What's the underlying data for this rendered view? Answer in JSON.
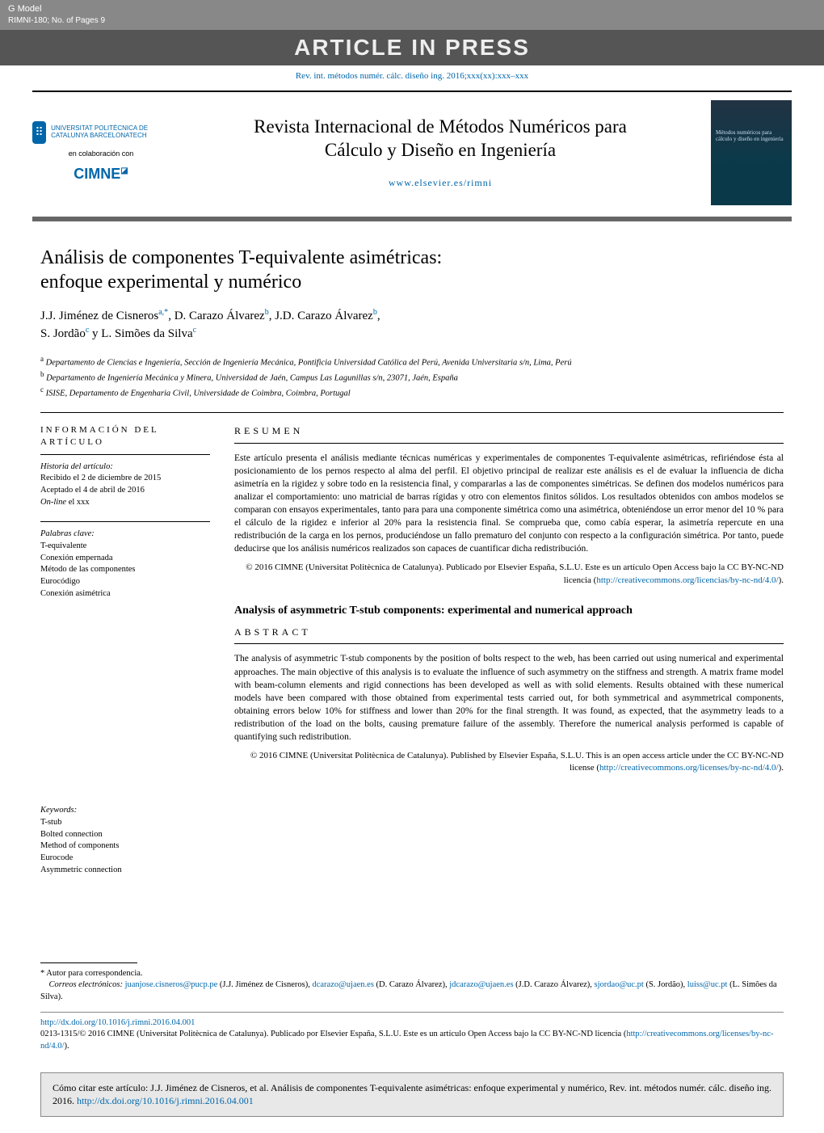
{
  "gmodel": {
    "line1": "G Model",
    "line2": "RIMNI-180;   No. of Pages 9"
  },
  "aip": "ARTICLE IN PRESS",
  "top_citation": "Rev. int. métodos numér. cálc. diseño ing. 2016;xxx(xx):xxx–xxx",
  "header": {
    "upc_text": "UNIVERSITAT POLITÈCNICA DE CATALUNYA BARCELONATECH",
    "colab": "en colaboración con",
    "cimne": "CIMNE",
    "journal_title_1": "Revista Internacional de Métodos Numéricos para",
    "journal_title_2": "Cálculo y Diseño en Ingeniería",
    "journal_url": "www.elsevier.es/rimni",
    "cover_text": "Métodos numéricos para cálculo y diseño en ingeniería"
  },
  "article": {
    "title_1": "Análisis de componentes T-equivalente asimétricas:",
    "title_2": "enfoque experimental y numérico",
    "authors_html": "J.J. Jiménez de Cisneros|a,*|,  D. Carazo Álvarez|b|,  J.D. Carazo Álvarez|b|,",
    "authors_line2": "S. Jordão|c| y L. Simões da Silva|c|",
    "affil_a": "Departamento de Ciencias e Ingeniería, Sección de Ingeniería Mecánica, Pontificia Universidad Católica del Perú, Avenida Universitaria s/n, Lima, Perú",
    "affil_b": "Departamento de Ingeniería Mecánica y Minera, Universidad de Jaén, Campus Las Lagunillas s/n, 23071, Jaén, España",
    "affil_c": "ISISE, Departamento de Engenharia Civil, Universidade de Coimbra, Coimbra, Portugal"
  },
  "left": {
    "info_head": "INFORMACIÓN DEL ARTÍCULO",
    "history_head": "Historia del artículo:",
    "received": "Recibido el 2 de diciembre de 2015",
    "accepted": "Aceptado el 4 de abril de 2016",
    "online": "On-line el xxx",
    "keywords_es_head": "Palabras clave:",
    "keywords_es": [
      "T-equivalente",
      "Conexión empernada",
      "Método de las componentes",
      "Eurocódigo",
      "Conexión asimétrica"
    ],
    "keywords_en_head": "Keywords:",
    "keywords_en": [
      "T-stub",
      "Bolted connection",
      "Method of components",
      "Eurocode",
      "Asymmetric connection"
    ]
  },
  "resumen": {
    "head": "RESUMEN",
    "text": "Este artículo presenta el análisis mediante técnicas numéricas y experimentales de componentes T-equivalente asimétricas, refiriéndose ésta al posicionamiento de los pernos respecto al alma del perfil. El objetivo principal de realizar este análisis es el de evaluar la influencia de dicha asimetría en la rigidez y sobre todo en la resistencia final, y compararlas a las de componentes simétricas. Se definen dos modelos numéricos para analizar el comportamiento: uno matricial de barras rígidas y otro con elementos finitos sólidos. Los resultados obtenidos con ambos modelos se comparan con ensayos experimentales, tanto para para una componente simétrica como una asimétrica, obteniéndose un error menor del 10 % para el cálculo de la rigidez e inferior al 20% para la resistencia final. Se comprueba que, como cabía esperar, la asimetría repercute en una redistribución de la carga en los pernos, produciéndose un fallo prematuro del conjunto con respecto a la configuración simétrica. Por tanto, puede deducirse que los análisis numéricos realizados son capaces de cuantificar dicha redistribución.",
    "copyright": "© 2016 CIMNE (Universitat Politècnica de Catalunya). Publicado por Elsevier España, S.L.U. Este es un artículo Open Access bajo la CC BY-NC-ND licencia (",
    "cc_link": "http://creativecommons.org/licencias/by-nc-nd/4.0/",
    "copyright_end": ")."
  },
  "en_title": "Analysis of asymmetric T-stub components: experimental and numerical approach",
  "abstract": {
    "head": "ABSTRACT",
    "text": "The analysis of asymmetric T-stub components by the position of bolts respect to the web, has been carried out using numerical and experimental approaches. The main objective of this analysis is to evaluate the influence of such asymmetry on the stiffness and strength. A matrix frame model with beam-column elements and rigid connections has been developed as well as with solid elements. Results obtained with these numerical models have been compared with those obtained from experimental tests carried out, for both symmetrical and asymmetrical components, obtaining errors below 10% for stiffness and lower than 20% for the final strength. It was found, as expected, that the asymmetry leads to a redistribution of the load on the bolts, causing premature failure of the assembly. Therefore the numerical analysis performed is capable of quantifying such redistribution.",
    "copyright": "© 2016 CIMNE (Universitat Politècnica de Catalunya). Published by Elsevier España, S.L.U. This is an open access article under the CC BY-NC-ND license (",
    "cc_link": "http://creativecommons.org/licenses/by-nc-nd/4.0/",
    "copyright_end": ")."
  },
  "footnotes": {
    "corr": "* Autor para correspondencia.",
    "emails_label": "Correos electrónicos:",
    "emails": [
      {
        "email": "juanjose.cisneros@pucp.pe",
        "name": "(J.J. Jiménez de Cisneros)"
      },
      {
        "email": "dcarazo@ujaen.es",
        "name": "(D. Carazo Álvarez)"
      },
      {
        "email": "jdcarazo@ujaen.es",
        "name": "(J.D. Carazo Álvarez)"
      },
      {
        "email": "sjordao@uc.pt",
        "name": "(S. Jordão)"
      },
      {
        "email": "luiss@uc.pt",
        "name": "(L. Simões da Silva)"
      }
    ],
    "doi": "http://dx.doi.org/10.1016/j.rimni.2016.04.001",
    "issn_line": "0213-1315/© 2016 CIMNE (Universitat Politècnica de Catalunya). Publicado por Elsevier España, S.L.U. Este es un artículo Open Access bajo la CC BY-NC-ND licencia (",
    "issn_link": "http://creativecommons.org/licenses/by-nc-nd/4.0/",
    "issn_end": ")."
  },
  "cite_box": {
    "text": "Cómo citar este artículo: J.J. Jiménez de Cisneros, et al. Análisis de componentes T-equivalente asimétricas: enfoque experimental y numérico, Rev. int. métodos numér. cálc. diseño ing. 2016. ",
    "link": "http://dx.doi.org/10.1016/j.rimni.2016.04.001"
  }
}
